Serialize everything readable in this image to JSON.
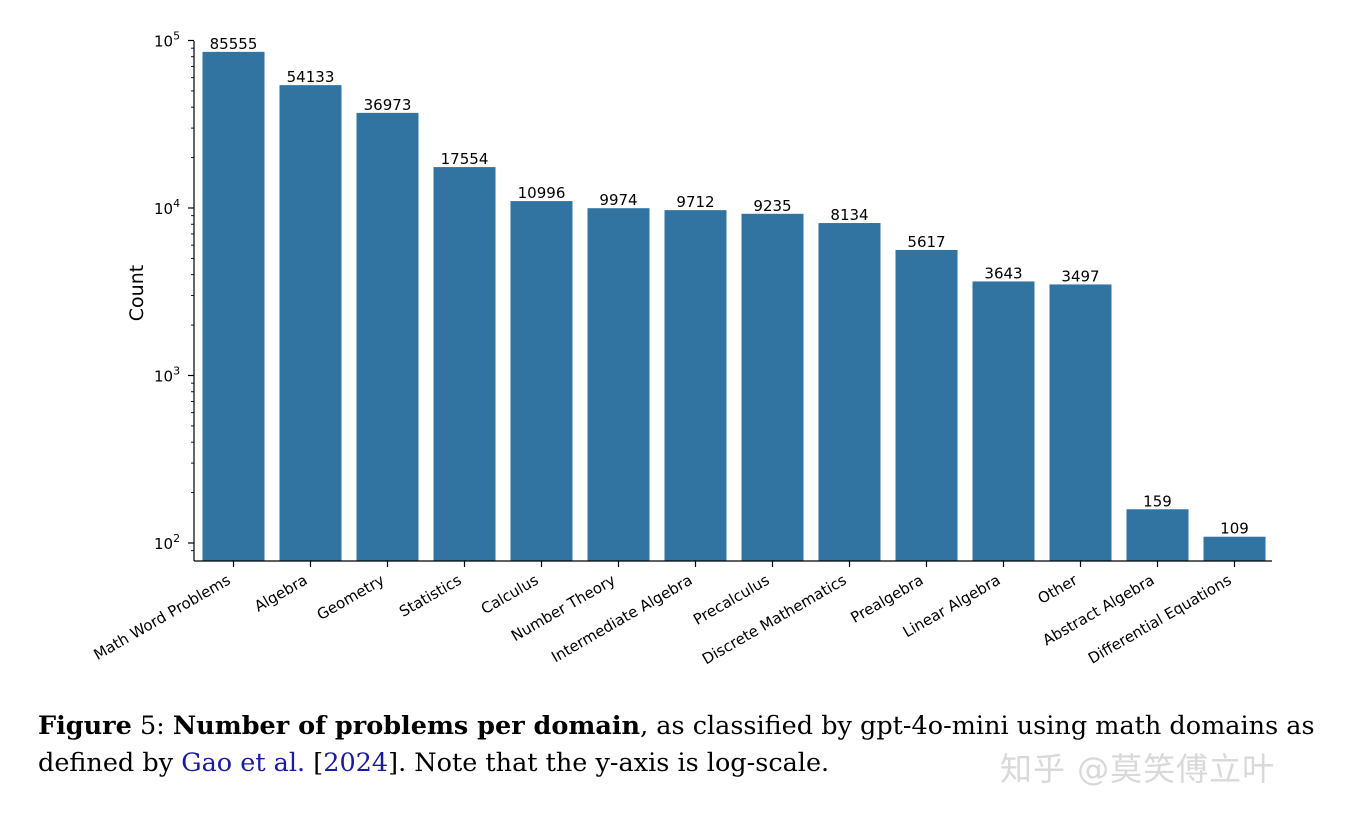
{
  "chart_data": {
    "type": "bar",
    "ylabel": "Count",
    "yscale": "log",
    "ylim": [
      80,
      100000
    ],
    "yticks": [
      {
        "base": "10",
        "exp": "2",
        "value": 100
      },
      {
        "base": "10",
        "exp": "3",
        "value": 1000
      },
      {
        "base": "10",
        "exp": "4",
        "value": 10000
      },
      {
        "base": "10",
        "exp": "5",
        "value": 100000
      }
    ],
    "bar_color": "#3274a1",
    "categories": [
      "Math Word Problems",
      "Algebra",
      "Geometry",
      "Statistics",
      "Calculus",
      "Number Theory",
      "Intermediate Algebra",
      "Precalculus",
      "Discrete Mathematics",
      "Prealgebra",
      "Linear Algebra",
      "Other",
      "Abstract Algebra",
      "Differential Equations"
    ],
    "values": [
      85555,
      54133,
      36973,
      17554,
      10996,
      9974,
      9712,
      9235,
      8134,
      5617,
      3643,
      3497,
      159,
      109
    ],
    "value_labels": [
      "85555",
      "54133",
      "36973",
      "17554",
      "10996",
      "9974",
      "9712",
      "9235",
      "8134",
      "5617",
      "3643",
      "3497",
      "159",
      "109"
    ]
  },
  "caption": {
    "fig_label": "Figure",
    "fig_number": "5:",
    "title": "Number of problems per domain",
    "text1": ", as classified by gpt-4o-mini using math domains as defined by ",
    "cite_authors": "Gao et al.",
    "cite_open": " [",
    "cite_year": "2024",
    "text2": "]. Note that the y-axis is log-scale."
  },
  "watermark": "知乎 @莫笑傅立叶"
}
